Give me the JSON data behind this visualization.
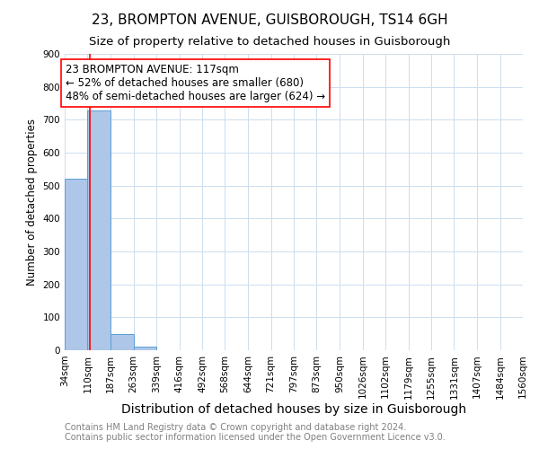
{
  "title": "23, BROMPTON AVENUE, GUISBOROUGH, TS14 6GH",
  "subtitle": "Size of property relative to detached houses in Guisborough",
  "xlabel": "Distribution of detached houses by size in Guisborough",
  "ylabel": "Number of detached properties",
  "bin_edges": [
    34,
    110,
    187,
    263,
    339,
    416,
    492,
    568,
    644,
    721,
    797,
    873,
    950,
    1026,
    1102,
    1179,
    1255,
    1331,
    1407,
    1484,
    1560
  ],
  "bar_heights": [
    520,
    727,
    50,
    10,
    0,
    0,
    0,
    0,
    0,
    0,
    0,
    0,
    0,
    0,
    0,
    0,
    0,
    0,
    0,
    0
  ],
  "bar_color": "#aec6e8",
  "bar_edgecolor": "#5a9fd4",
  "grid_color": "#ccddee",
  "property_line_x": 117,
  "property_line_color": "red",
  "annotation_text": "23 BROMPTON AVENUE: 117sqm\n← 52% of detached houses are smaller (680)\n48% of semi-detached houses are larger (624) →",
  "annotation_box_color": "white",
  "annotation_box_edgecolor": "red",
  "ylim": [
    0,
    900
  ],
  "yticks": [
    0,
    100,
    200,
    300,
    400,
    500,
    600,
    700,
    800,
    900
  ],
  "footer_line1": "Contains HM Land Registry data © Crown copyright and database right 2024.",
  "footer_line2": "Contains public sector information licensed under the Open Government Licence v3.0.",
  "title_fontsize": 11,
  "subtitle_fontsize": 9.5,
  "xlabel_fontsize": 10,
  "ylabel_fontsize": 8.5,
  "tick_fontsize": 7.5,
  "annotation_fontsize": 8.5,
  "footer_fontsize": 7
}
